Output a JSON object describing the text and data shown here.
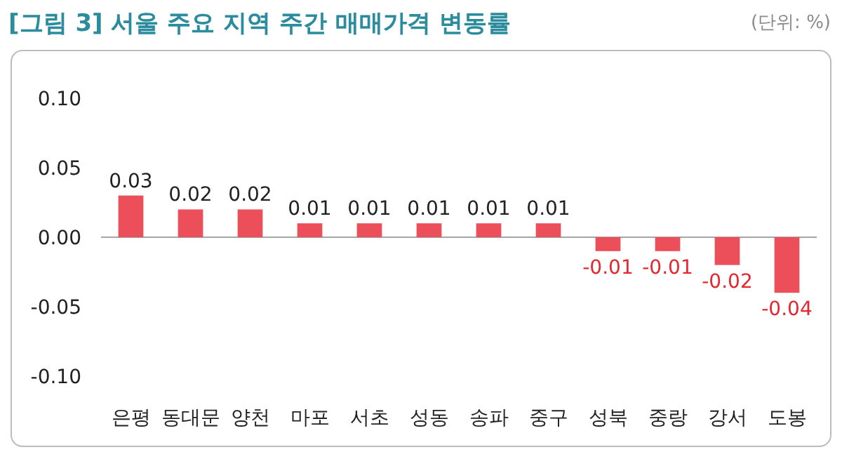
{
  "chart_data": {
    "type": "bar",
    "title": "[그림 3] 서울 주요 지역 주간 매매가격 변동률",
    "annotations": [
      "(단위: %)"
    ],
    "categories": [
      "은평",
      "동대문",
      "양천",
      "마포",
      "서초",
      "성동",
      "송파",
      "중구",
      "성북",
      "중랑",
      "강서",
      "도봉"
    ],
    "values": [
      0.03,
      0.02,
      0.02,
      0.01,
      0.01,
      0.01,
      0.01,
      0.01,
      -0.01,
      -0.01,
      -0.02,
      -0.04
    ],
    "color": "#ec4e5a",
    "ylim": [
      -0.1,
      0.1
    ],
    "yticks": [
      {
        "value": 0.1,
        "label": "0.10"
      },
      {
        "value": 0.05,
        "label": "0.05"
      },
      {
        "value": 0,
        "label": "0.00"
      },
      {
        "value": -0.05,
        "label": "-0.05"
      },
      {
        "value": -0.1,
        "label": "-0.10"
      }
    ],
    "data_labels": true
  }
}
